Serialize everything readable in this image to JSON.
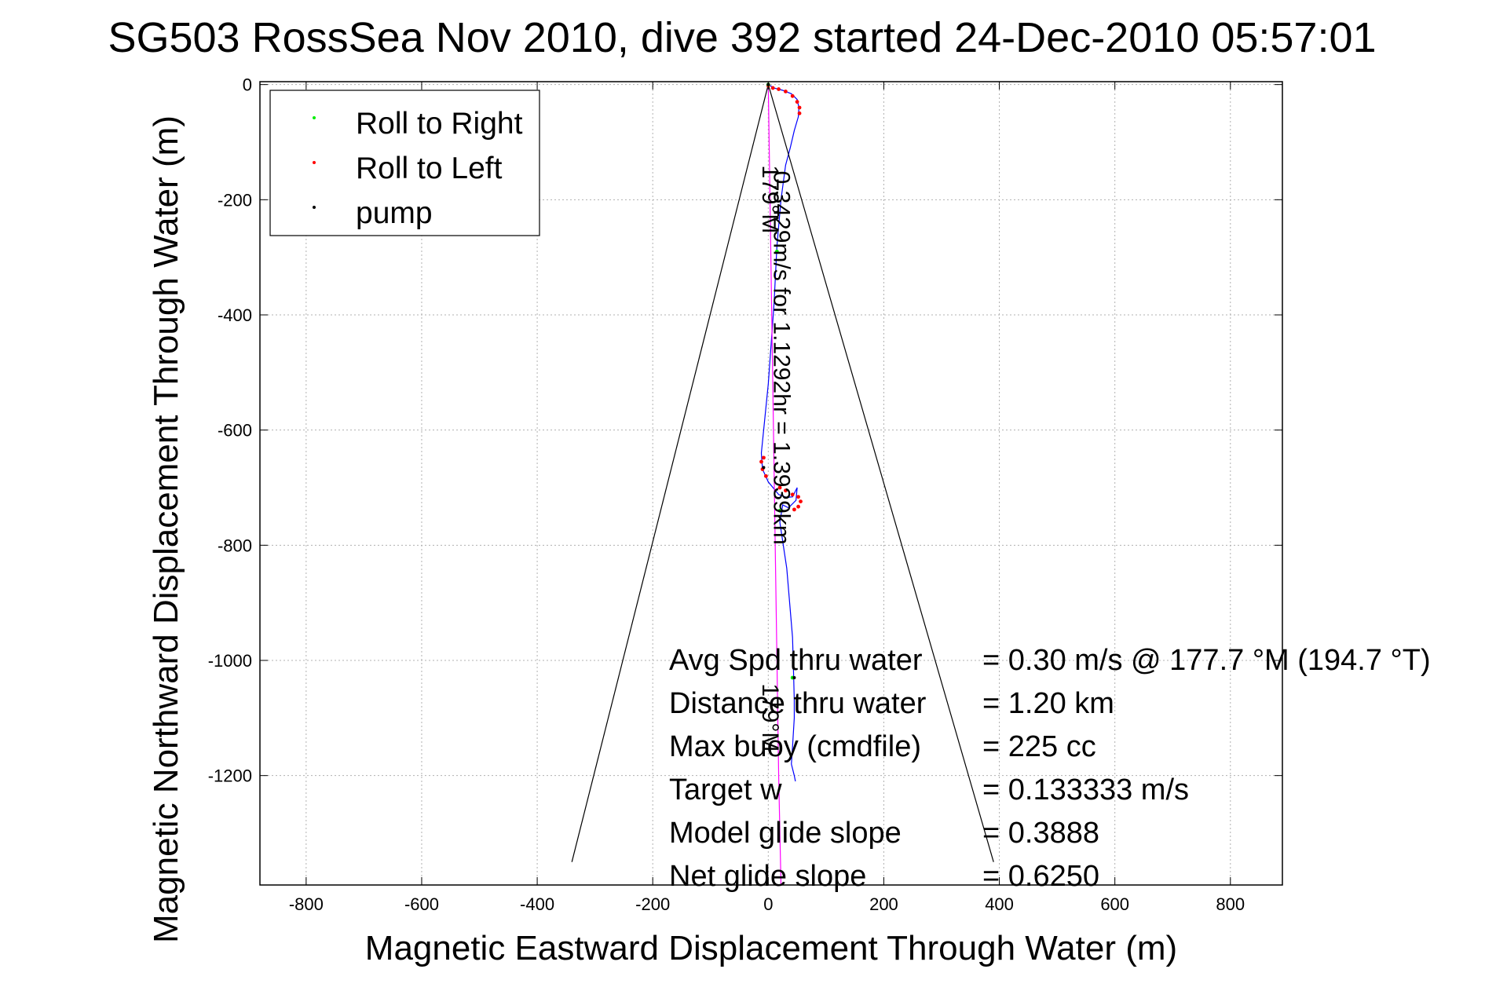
{
  "chart_data": {
    "type": "line",
    "title": "SG503 RossSea Nov 2010, dive 392 started 24-Dec-2010 05:57:01",
    "xlabel": "Magnetic Eastward Displacement Through Water (m)",
    "ylabel": "Magnetic Northward Displacement Through Water (m)",
    "xlim": [
      -880,
      890
    ],
    "ylim": [
      -1390,
      5
    ],
    "xticks": [
      -800,
      -600,
      -400,
      -200,
      0,
      200,
      400,
      600,
      800
    ],
    "yticks": [
      0,
      -200,
      -400,
      -600,
      -800,
      -1000,
      -1200
    ],
    "xtick_labels": [
      "-800",
      "-600",
      "-400",
      "-200",
      "0",
      "200",
      "400",
      "600",
      "800"
    ],
    "ytick_labels": [
      "0",
      "-200",
      "-400",
      "-600",
      "-800",
      "-1000",
      "-1200"
    ],
    "grid": true,
    "legend_position": "top-left",
    "legend": [
      {
        "label": "Roll to Right",
        "color": "#00ee00"
      },
      {
        "label": "Roll to Left",
        "color": "#ff0000"
      },
      {
        "label": "pump",
        "color": "#000000"
      }
    ],
    "series": [
      {
        "name": "track",
        "color": "#0000ff",
        "x": [
          0,
          10,
          25,
          40,
          50,
          53,
          52,
          45,
          38,
          30,
          22,
          15,
          10,
          0,
          -12,
          -10,
          0,
          18,
          32,
          42,
          50,
          48,
          35,
          25,
          20,
          32,
          42,
          44,
          45,
          45,
          42,
          40,
          45,
          47
        ],
        "y": [
          0,
          -6,
          -10,
          -16,
          -26,
          -40,
          -56,
          -80,
          -110,
          -140,
          -200,
          -280,
          -380,
          -520,
          -640,
          -668,
          -690,
          -712,
          -717,
          -716,
          -700,
          -722,
          -735,
          -730,
          -760,
          -840,
          -960,
          -1030,
          -1070,
          -1100,
          -1150,
          -1180,
          -1200,
          -1210
        ]
      },
      {
        "name": "heading",
        "color": "#ff00ff",
        "x": [
          0,
          3,
          6,
          9,
          12,
          15,
          18,
          22
        ],
        "y": [
          0,
          -200,
          -400,
          -600,
          -800,
          -1000,
          -1200,
          -1390
        ]
      },
      {
        "name": "current-cone-left",
        "color": "#000000",
        "x": [
          0,
          -340
        ],
        "y": [
          0,
          -1350
        ]
      },
      {
        "name": "current-cone-right",
        "color": "#000000",
        "x": [
          0,
          390
        ],
        "y": [
          0,
          -1350
        ]
      }
    ],
    "roll_to_right": {
      "x": [
        0,
        15,
        20,
        42
      ],
      "y": [
        0,
        -290,
        -740,
        -1030
      ]
    },
    "roll_to_left": {
      "x": [
        0,
        8,
        18,
        30,
        42,
        50,
        54,
        54,
        -8,
        -12,
        -10,
        -4,
        20,
        30,
        42,
        52,
        56,
        52,
        45
      ],
      "y": [
        -2,
        -6,
        -8,
        -12,
        -20,
        -30,
        -40,
        -50,
        -648,
        -655,
        -668,
        -680,
        -700,
        -705,
        -712,
        -716,
        -724,
        -733,
        -738
      ]
    },
    "pump": {
      "x": [
        0,
        -8,
        45
      ],
      "y": [
        0,
        -665,
        -1030
      ]
    },
    "annotations": [
      {
        "text": "0.3429m/s for 1.1292hr = 1.3939km",
        "x": 10,
        "y": -150,
        "rotation": 90
      },
      {
        "text": "179°M",
        "x": -10,
        "y": -140,
        "rotation": 90
      },
      {
        "text": "179°M",
        "x": -10,
        "y": -1040,
        "rotation": 90
      }
    ],
    "stats": [
      {
        "label": "Avg Spd thru water",
        "value": "=  0.30 m/s @ 177.7 °M (194.7 °T)"
      },
      {
        "label": "Distance thru water",
        "value": "=  1.20 km"
      },
      {
        "label": "Max buoy (cmdfile)",
        "value": "= 225 cc"
      },
      {
        "label": "Target w",
        "value": "= 0.133333 m/s"
      },
      {
        "label": "Model glide slope",
        "value": "= 0.3888"
      },
      {
        "label": "Net glide slope",
        "value": "= 0.6250"
      }
    ]
  }
}
